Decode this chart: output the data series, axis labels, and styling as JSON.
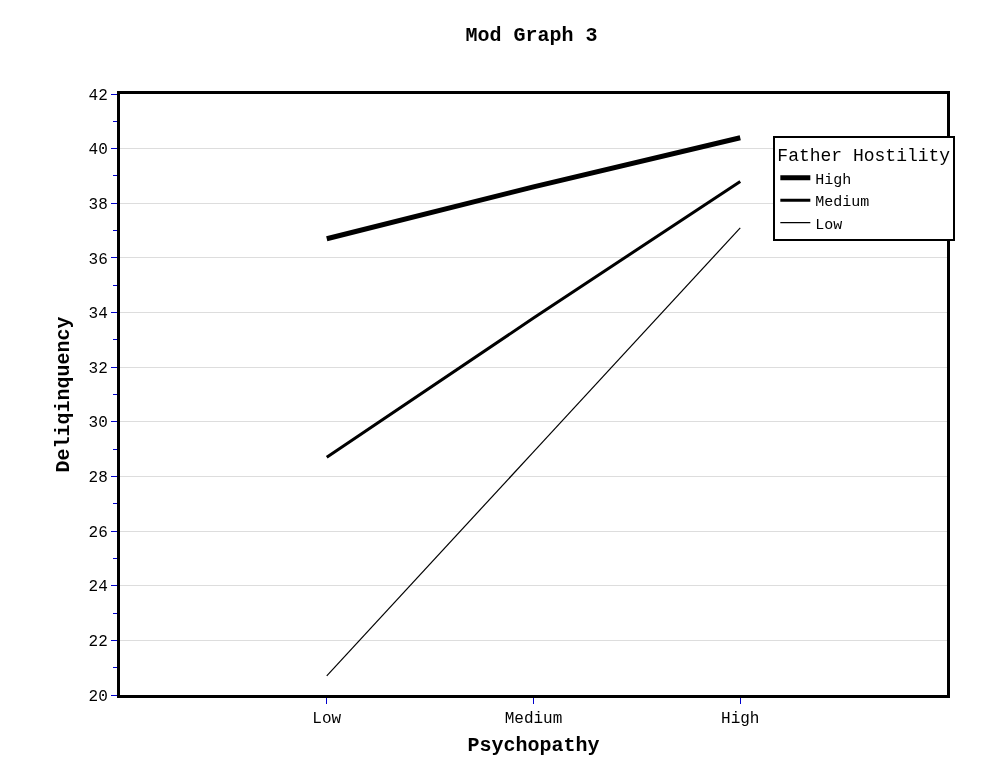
{
  "chart_data": {
    "type": "line",
    "title": "Mod Graph 3",
    "xlabel": "Psychopathy",
    "ylabel": "Deliqinquency",
    "legend_title": "Father Hostility",
    "categories": [
      "Low",
      "Medium",
      "High"
    ],
    "series": [
      {
        "name": "High",
        "color": "#000000",
        "values": [
          36.7,
          38.6,
          40.4
        ]
      },
      {
        "name": "Medium",
        "color": "#000000",
        "values": [
          28.7,
          33.8,
          38.8
        ]
      },
      {
        "name": "Low",
        "color": "#000000",
        "values": [
          20.7,
          28.9,
          37.1
        ]
      }
    ],
    "ylim": [
      20,
      42
    ],
    "yticks": [
      20,
      22,
      24,
      26,
      28,
      30,
      32,
      34,
      36,
      38,
      40,
      42
    ],
    "grid": "y",
    "legend": "top right",
    "marker": "none",
    "line_style": "solid"
  }
}
